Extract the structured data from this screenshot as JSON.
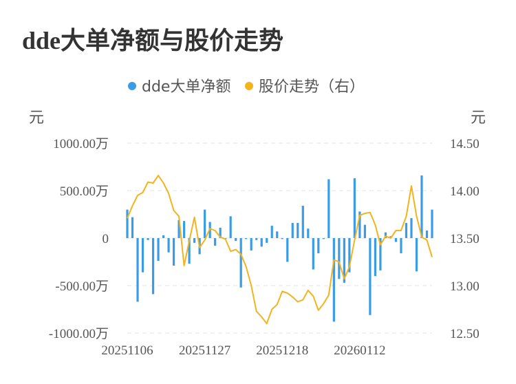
{
  "title": "dde大单净额与股价走势",
  "chart_data": {
    "type": "bar+line",
    "title": "dde大单净额与股价走势",
    "legend": [
      {
        "name": "dde大单净额",
        "color": "#3a9be6"
      },
      {
        "name": "股价走势（右）",
        "color": "#f2b31d"
      }
    ],
    "y_left": {
      "unit": "元",
      "ticks": [
        "1000.00万",
        "500.00万",
        "0",
        "-500.00万",
        "-1000.00万"
      ],
      "range": [
        -1000,
        1000
      ]
    },
    "y_right": {
      "unit": "元",
      "ticks": [
        "14.50",
        "14.00",
        "13.50",
        "13.00",
        "12.50"
      ],
      "range": [
        12.5,
        14.5
      ]
    },
    "x_ticks": [
      "20251106",
      "20251127",
      "20251218",
      "20260112"
    ],
    "bar_series": {
      "name": "dde大单净额",
      "color": "#3a9be6",
      "values": [
        300,
        220,
        -670,
        -360,
        -20,
        -590,
        -240,
        30,
        -150,
        -290,
        190,
        180,
        -270,
        -50,
        -170,
        300,
        170,
        -80,
        110,
        -10,
        230,
        -30,
        -520,
        -10,
        -130,
        -20,
        -90,
        -50,
        130,
        70,
        -10,
        -250,
        160,
        160,
        340,
        100,
        -330,
        -160,
        -10,
        620,
        -880,
        -430,
        -470,
        -360,
        630,
        280,
        140,
        -810,
        -400,
        -340,
        60,
        20,
        -40,
        -160,
        160,
        210,
        -350,
        660,
        80,
        300
      ]
    },
    "line_series": {
      "name": "股价走势（右）",
      "color": "#f2b31d",
      "values": [
        13.71,
        13.84,
        13.95,
        13.98,
        14.09,
        14.08,
        14.16,
        14.08,
        13.97,
        13.79,
        13.73,
        13.21,
        13.47,
        13.72,
        13.4,
        13.48,
        13.6,
        13.58,
        13.51,
        13.49,
        13.36,
        13.38,
        13.33,
        13.2,
        13.0,
        12.73,
        12.67,
        12.6,
        12.75,
        12.8,
        12.94,
        12.92,
        12.88,
        12.83,
        12.85,
        12.95,
        12.89,
        12.74,
        12.81,
        12.9,
        13.27,
        13.25,
        13.07,
        13.2,
        13.48,
        13.74,
        13.76,
        13.77,
        13.64,
        13.43,
        13.52,
        13.5,
        13.58,
        13.58,
        13.73,
        14.05,
        13.73,
        13.51,
        13.48,
        13.3
      ]
    }
  }
}
